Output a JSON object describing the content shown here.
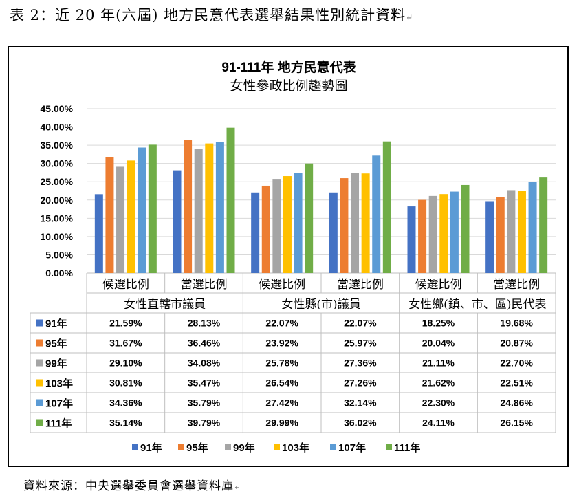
{
  "caption": "表 2：近 20 年(六屆) 地方民意代表選舉結果性別統計資料",
  "source": "資料來源：中央選舉委員會選舉資料庫",
  "chart_data": {
    "type": "bar",
    "title": "91-111年 地方民意代表",
    "subtitle": "女性參政比例趨勢圖",
    "categories": [
      "候選比例",
      "當選比例",
      "候選比例",
      "當選比例",
      "候選比例",
      "當選比例"
    ],
    "groups": [
      "女性直轄市議員",
      "女性縣(市)議員",
      "女性鄉(鎮、市、區)民代表"
    ],
    "yticks": [
      "0.00%",
      "5.00%",
      "10.00%",
      "15.00%",
      "20.00%",
      "25.00%",
      "30.00%",
      "35.00%",
      "40.00%",
      "45.00%"
    ],
    "ylim": [
      0,
      45
    ],
    "legend_position": "bottom",
    "grid": true,
    "series": [
      {
        "name": "91年",
        "color": "#4472C4",
        "values": [
          21.59,
          28.13,
          22.07,
          22.07,
          18.25,
          19.68
        ],
        "labels": [
          "21.59%",
          "28.13%",
          "22.07%",
          "22.07%",
          "18.25%",
          "19.68%"
        ]
      },
      {
        "name": "95年",
        "color": "#ED7D31",
        "values": [
          31.67,
          36.46,
          23.92,
          25.97,
          20.04,
          20.87
        ],
        "labels": [
          "31.67%",
          "36.46%",
          "23.92%",
          "25.97%",
          "20.04%",
          "20.87%"
        ]
      },
      {
        "name": "99年",
        "color": "#A5A5A5",
        "values": [
          29.1,
          34.08,
          25.78,
          27.36,
          21.11,
          22.7
        ],
        "labels": [
          "29.10%",
          "34.08%",
          "25.78%",
          "27.36%",
          "21.11%",
          "22.70%"
        ]
      },
      {
        "name": "103年",
        "color": "#FFC000",
        "values": [
          30.81,
          35.47,
          26.54,
          27.26,
          21.62,
          22.51
        ],
        "labels": [
          "30.81%",
          "35.47%",
          "26.54%",
          "27.26%",
          "21.62%",
          "22.51%"
        ]
      },
      {
        "name": "107年",
        "color": "#5B9BD5",
        "values": [
          34.36,
          35.79,
          27.42,
          32.14,
          22.3,
          24.86
        ],
        "labels": [
          "34.36%",
          "35.79%",
          "27.42%",
          "32.14%",
          "22.30%",
          "24.86%"
        ]
      },
      {
        "name": "111年",
        "color": "#70AD47",
        "values": [
          35.14,
          39.79,
          29.99,
          36.02,
          24.11,
          26.15
        ],
        "labels": [
          "35.14%",
          "39.79%",
          "29.99%",
          "36.02%",
          "24.11%",
          "26.15%"
        ]
      }
    ]
  }
}
